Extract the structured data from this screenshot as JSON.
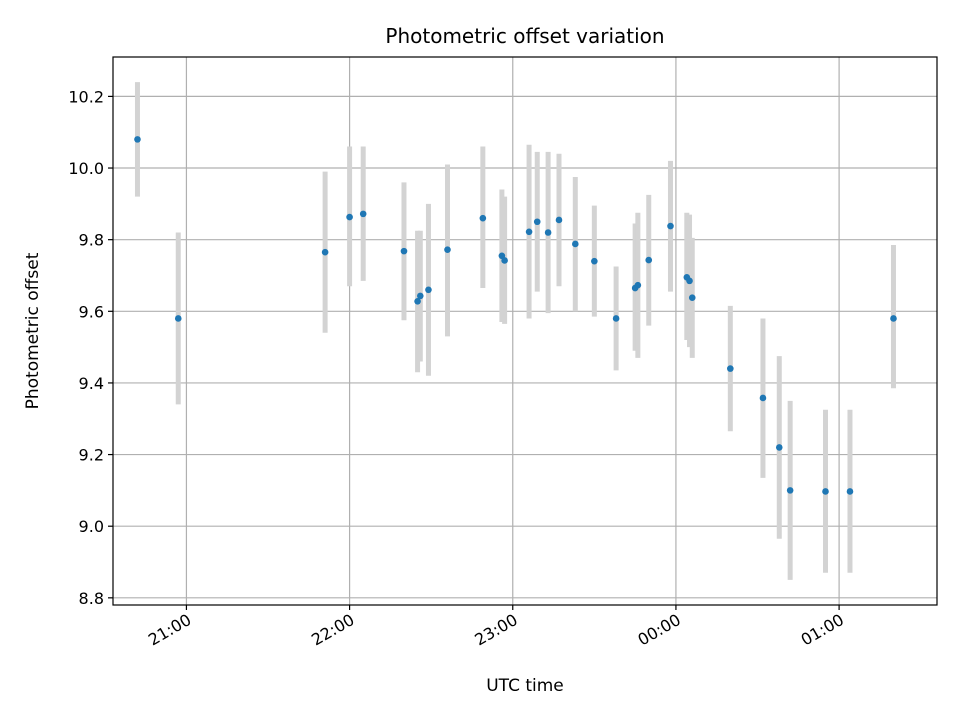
{
  "chart_data": {
    "type": "scatter",
    "title": "Photometric offset variation",
    "xlabel": "UTC time",
    "ylabel": "Photometric offset",
    "x_unit": "UTC time (HH:MM)",
    "xlim": [
      "20:32",
      "01:35"
    ],
    "ylim": [
      8.78,
      10.31
    ],
    "grid": true,
    "x_ticks": [
      {
        "value": "20:59",
        "label": "21:00"
      },
      {
        "value": "21:59",
        "label": "22:00"
      },
      {
        "value": "22:59",
        "label": "23:00"
      },
      {
        "value": "23:59",
        "label": "00:00"
      },
      {
        "value": "00:59",
        "label": "01:00"
      }
    ],
    "y_ticks": [
      8.8,
      9.0,
      9.2,
      9.4,
      9.6,
      9.8,
      10.0,
      10.2
    ],
    "y_tick_labels": [
      "8.8",
      "9.0",
      "9.2",
      "9.4",
      "9.6",
      "9.8",
      "10.0",
      "10.2"
    ],
    "marker_color": "#1f77b4",
    "errorbar_color": "#d3d3d3",
    "points": [
      {
        "x": "20:41",
        "y": 10.08,
        "low": 9.92,
        "high": 10.24
      },
      {
        "x": "20:56",
        "y": 9.58,
        "low": 9.34,
        "high": 9.82
      },
      {
        "x": "21:50",
        "y": 9.765,
        "low": 9.54,
        "high": 9.99
      },
      {
        "x": "21:59",
        "y": 9.863,
        "low": 9.67,
        "high": 10.06
      },
      {
        "x": "22:04",
        "y": 9.872,
        "low": 9.685,
        "high": 10.06
      },
      {
        "x": "22:19",
        "y": 9.768,
        "low": 9.575,
        "high": 9.96
      },
      {
        "x": "22:24",
        "y": 9.628,
        "low": 9.43,
        "high": 9.825
      },
      {
        "x": "22:25",
        "y": 9.643,
        "low": 9.46,
        "high": 9.825
      },
      {
        "x": "22:28",
        "y": 9.66,
        "low": 9.42,
        "high": 9.9
      },
      {
        "x": "22:35",
        "y": 9.772,
        "low": 9.53,
        "high": 10.01
      },
      {
        "x": "22:48",
        "y": 9.86,
        "low": 9.665,
        "high": 10.06
      },
      {
        "x": "22:55",
        "y": 9.755,
        "low": 9.57,
        "high": 9.94
      },
      {
        "x": "22:56",
        "y": 9.742,
        "low": 9.565,
        "high": 9.92
      },
      {
        "x": "23:05",
        "y": 9.822,
        "low": 9.58,
        "high": 10.065
      },
      {
        "x": "23:08",
        "y": 9.85,
        "low": 9.655,
        "high": 10.045
      },
      {
        "x": "23:12",
        "y": 9.82,
        "low": 9.595,
        "high": 10.045
      },
      {
        "x": "23:16",
        "y": 9.855,
        "low": 9.67,
        "high": 10.04
      },
      {
        "x": "23:22",
        "y": 9.788,
        "low": 9.6,
        "high": 9.975
      },
      {
        "x": "23:29",
        "y": 9.74,
        "low": 9.585,
        "high": 9.895
      },
      {
        "x": "23:37",
        "y": 9.58,
        "low": 9.435,
        "high": 9.725
      },
      {
        "x": "23:44",
        "y": 9.665,
        "low": 9.49,
        "high": 9.845
      },
      {
        "x": "23:45",
        "y": 9.673,
        "low": 9.47,
        "high": 9.875
      },
      {
        "x": "23:49",
        "y": 9.743,
        "low": 9.56,
        "high": 9.925
      },
      {
        "x": "23:57",
        "y": 9.838,
        "low": 9.655,
        "high": 10.02
      },
      {
        "x": "00:03",
        "y": 9.695,
        "low": 9.52,
        "high": 9.875
      },
      {
        "x": "00:04",
        "y": 9.685,
        "low": 9.5,
        "high": 9.87
      },
      {
        "x": "00:05",
        "y": 9.638,
        "low": 9.47,
        "high": 9.805
      },
      {
        "x": "00:19",
        "y": 9.44,
        "low": 9.265,
        "high": 9.615
      },
      {
        "x": "00:31",
        "y": 9.358,
        "low": 9.135,
        "high": 9.58
      },
      {
        "x": "00:37",
        "y": 9.22,
        "low": 8.965,
        "high": 9.475
      },
      {
        "x": "00:41",
        "y": 9.1,
        "low": 8.85,
        "high": 9.35
      },
      {
        "x": "00:54",
        "y": 9.097,
        "low": 8.87,
        "high": 9.325
      },
      {
        "x": "01:03",
        "y": 9.097,
        "low": 8.87,
        "high": 9.325
      },
      {
        "x": "01:19",
        "y": 9.58,
        "low": 9.385,
        "high": 9.785
      }
    ]
  }
}
